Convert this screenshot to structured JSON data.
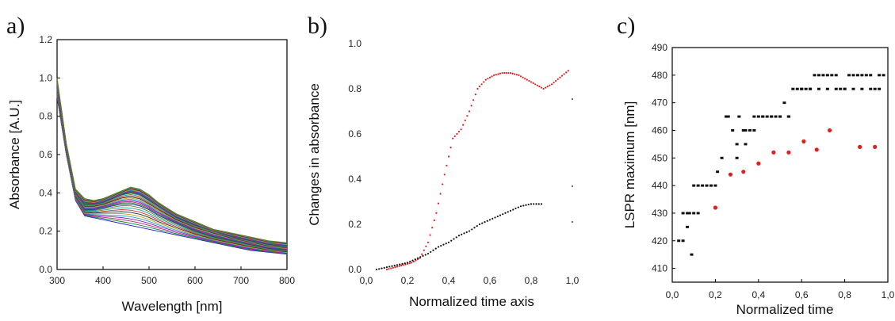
{
  "chart_data": [
    {
      "panel": "a)",
      "type": "line",
      "xlabel": "Wavelength [nm]",
      "ylabel": "Absorbance [A.U.]",
      "xlim": [
        300,
        800
      ],
      "ylim": [
        0,
        1.2
      ],
      "xticks": [
        "300",
        "400",
        "500",
        "600",
        "700",
        "800"
      ],
      "yticks": [
        "0.0",
        "0.2",
        "0.4",
        "0.6",
        "0.8",
        "1.0",
        "1.2"
      ],
      "series_count": 30,
      "x": [
        300,
        320,
        340,
        360,
        380,
        400,
        420,
        440,
        460,
        480,
        500,
        520,
        540,
        560,
        580,
        600,
        640,
        680,
        720,
        760,
        800
      ],
      "series": [
        {
          "values": [
            0.9,
            0.6,
            0.36,
            0.28,
            0.27,
            0.26,
            0.25,
            0.24,
            0.23,
            0.22,
            0.21,
            0.2,
            0.19,
            0.18,
            0.17,
            0.16,
            0.14,
            0.12,
            0.1,
            0.09,
            0.08
          ]
        },
        {
          "values": [
            0.92,
            0.62,
            0.38,
            0.31,
            0.31,
            0.32,
            0.33,
            0.34,
            0.34,
            0.33,
            0.31,
            0.28,
            0.26,
            0.24,
            0.22,
            0.2,
            0.17,
            0.15,
            0.13,
            0.11,
            0.1
          ]
        },
        {
          "values": [
            0.95,
            0.64,
            0.4,
            0.34,
            0.34,
            0.35,
            0.37,
            0.39,
            0.4,
            0.39,
            0.36,
            0.33,
            0.3,
            0.27,
            0.25,
            0.23,
            0.2,
            0.17,
            0.15,
            0.13,
            0.12
          ]
        },
        {
          "values": [
            1.0,
            0.66,
            0.42,
            0.37,
            0.36,
            0.37,
            0.39,
            0.41,
            0.43,
            0.42,
            0.39,
            0.35,
            0.32,
            0.29,
            0.27,
            0.25,
            0.21,
            0.19,
            0.17,
            0.15,
            0.14
          ]
        }
      ]
    },
    {
      "panel": "b)",
      "type": "scatter",
      "xlabel": "Normalized time axis",
      "ylabel": "Changes in absorbance",
      "xlim": [
        0.0,
        1.0
      ],
      "ylim": [
        0.0,
        1.0
      ],
      "xticks": [
        "0,0",
        "0,2",
        "0,4",
        "0,6",
        "0,8",
        "1,0"
      ],
      "yticks": [
        "0.0",
        "0.2",
        "0.4",
        "0.6",
        "0.8",
        "1.0"
      ],
      "series": [
        {
          "color": "#e02020",
          "x": [
            0.1,
            0.14,
            0.18,
            0.22,
            0.26,
            0.3,
            0.34,
            0.38,
            0.42,
            0.46,
            0.5,
            0.54,
            0.58,
            0.62,
            0.66,
            0.7,
            0.74,
            0.78,
            0.82,
            0.86,
            0.9,
            0.94,
            0.98
          ],
          "y": [
            0.0,
            0.01,
            0.02,
            0.03,
            0.05,
            0.12,
            0.25,
            0.42,
            0.58,
            0.62,
            0.7,
            0.8,
            0.84,
            0.86,
            0.87,
            0.87,
            0.86,
            0.84,
            0.82,
            0.8,
            0.82,
            0.85,
            0.88
          ]
        },
        {
          "color": "#111111",
          "x": [
            0.05,
            0.1,
            0.15,
            0.2,
            0.25,
            0.3,
            0.35,
            0.4,
            0.45,
            0.5,
            0.55,
            0.6,
            0.65,
            0.7,
            0.75,
            0.8,
            0.85
          ],
          "y": [
            0.0,
            0.01,
            0.02,
            0.03,
            0.05,
            0.07,
            0.1,
            0.12,
            0.15,
            0.17,
            0.2,
            0.22,
            0.24,
            0.26,
            0.28,
            0.29,
            0.29
          ]
        }
      ]
    },
    {
      "panel": "c)",
      "type": "scatter",
      "xlabel": "Normalized time",
      "ylabel": "LSPR maximum [nm]",
      "xlim": [
        0.0,
        1.0
      ],
      "ylim": [
        405,
        490
      ],
      "xticks": [
        "0,0",
        "0,2",
        "0,4",
        "0,6",
        "0,8",
        "1,0"
      ],
      "yticks": [
        "410",
        "420",
        "430",
        "440",
        "450",
        "460",
        "470",
        "480",
        "490"
      ],
      "series": [
        {
          "color": "#111111",
          "x": [
            0.03,
            0.05,
            0.07,
            0.08,
            0.09,
            0.1,
            0.12,
            0.14,
            0.16,
            0.18,
            0.2,
            0.21,
            0.23,
            0.25,
            0.26,
            0.28,
            0.3,
            0.31,
            0.33,
            0.34,
            0.36,
            0.38,
            0.4,
            0.42,
            0.44,
            0.46,
            0.48,
            0.5,
            0.52,
            0.54,
            0.56,
            0.58,
            0.6,
            0.62,
            0.64,
            0.66,
            0.68,
            0.7,
            0.72,
            0.74,
            0.76,
            0.78,
            0.8,
            0.82,
            0.84,
            0.86,
            0.88,
            0.9,
            0.92,
            0.94,
            0.96,
            0.98,
            0.05,
            0.07,
            0.1,
            0.12,
            0.6,
            0.64,
            0.68,
            0.72,
            0.76,
            0.8,
            0.84,
            0.88,
            0.92,
            0.96,
            0.3,
            0.34,
            0.38,
            0.42,
            0.46,
            0.5,
            0.54
          ],
          "y": [
            420,
            420,
            425,
            430,
            415,
            440,
            440,
            440,
            440,
            440,
            440,
            445,
            450,
            465,
            465,
            460,
            455,
            465,
            460,
            460,
            460,
            465,
            465,
            465,
            465,
            465,
            465,
            465,
            470,
            465,
            475,
            475,
            475,
            475,
            475,
            480,
            480,
            480,
            480,
            480,
            480,
            475,
            475,
            480,
            480,
            480,
            480,
            480,
            480,
            475,
            480,
            480,
            430,
            430,
            430,
            430,
            475,
            475,
            475,
            475,
            475,
            475,
            475,
            475,
            475,
            475,
            450,
            455,
            460,
            465,
            465,
            465,
            465
          ]
        },
        {
          "color": "#e02020",
          "x": [
            0.2,
            0.27,
            0.33,
            0.4,
            0.47,
            0.54,
            0.61,
            0.67,
            0.73,
            0.87,
            0.94
          ],
          "y": [
            432,
            444,
            445,
            448,
            452,
            452,
            456,
            453,
            460,
            454,
            454
          ]
        }
      ]
    }
  ]
}
